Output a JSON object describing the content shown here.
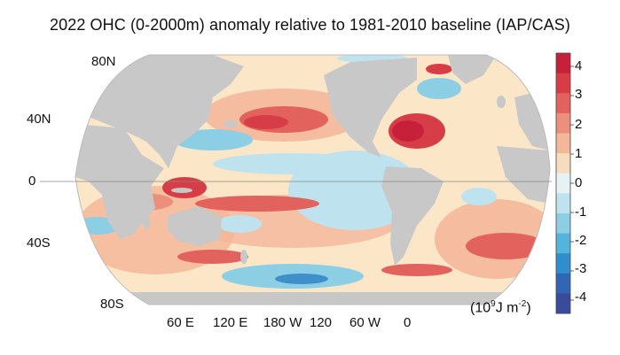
{
  "title": "2022 OHC (0-2000m) anomaly relative to 1981-2010 baseline (IAP/CAS)",
  "lat_labels": [
    "80N",
    "40N",
    "0",
    "40S",
    "80S"
  ],
  "lon_labels": [
    "60 E",
    "120 E",
    "180 W",
    "120",
    "60 W",
    "0"
  ],
  "colorbar": {
    "ticks": [
      "4",
      "3",
      "2",
      "1",
      "0",
      "-1",
      "-2",
      "-3",
      "-4"
    ],
    "units_base": "(10",
    "units_exp1": "9",
    "units_mid": "J m",
    "units_exp2": "-2",
    "units_end": ")",
    "colors_top_to_bottom": [
      "#c7203a",
      "#d63d46",
      "#e2625e",
      "#ec8f7c",
      "#f4b79a",
      "#f8dcbf",
      "#e6f3f5",
      "#bfe3ee",
      "#8ccfe4",
      "#55b4dc",
      "#2e8fcc",
      "#2f67b5",
      "#3a4a9c"
    ]
  },
  "colors": {
    "land": "#c8c8c8",
    "ocean_neutral": "#fbe6c8",
    "warm_strong": "#d83a47",
    "warm": "#f0a486",
    "cool": "#a9dbe9",
    "cool_strong": "#3f8fcb"
  }
}
